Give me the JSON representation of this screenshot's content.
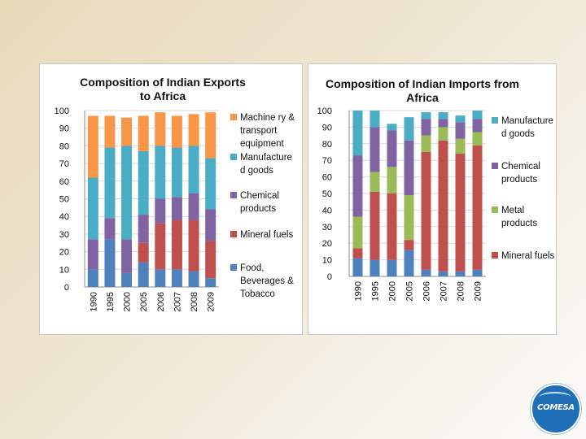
{
  "chart_data": [
    {
      "type": "bar",
      "stacked": true,
      "title": [
        "Composition of Indian Exports",
        "to Africa"
      ],
      "categories": [
        "1990",
        "1995",
        "2000",
        "2005",
        "2006",
        "2007",
        "2008",
        "2009"
      ],
      "ylim": [
        0,
        100
      ],
      "yticks": [
        "0",
        "10",
        "20",
        "30",
        "40",
        "50",
        "60",
        "70",
        "80",
        "90",
        "100"
      ],
      "grid": true,
      "legend_position": "right",
      "series": [
        {
          "name": [
            "Food,",
            "Beverages &",
            "Tobacco"
          ],
          "color": "#4f81bd",
          "values": [
            10,
            27,
            8,
            14,
            10,
            10,
            9,
            5
          ]
        },
        {
          "name": [
            "Mineral fuels"
          ],
          "color": "#c0504d",
          "values": [
            0,
            0,
            0,
            11,
            26,
            28,
            29,
            21
          ]
        },
        {
          "name": [
            "Chemical",
            "products"
          ],
          "color": "#8064a2",
          "values": [
            17,
            12,
            19,
            16,
            14,
            13,
            15,
            18
          ]
        },
        {
          "name": [
            "Manufacture",
            "d goods"
          ],
          "color": "#4bacc6",
          "values": [
            35,
            40,
            53,
            36,
            30,
            28,
            27,
            29
          ]
        },
        {
          "name": [
            "Machine ry &",
            "transport",
            "equipment"
          ],
          "color": "#f79646",
          "values": [
            35,
            18,
            16,
            20,
            19,
            18,
            18,
            26
          ]
        }
      ]
    },
    {
      "type": "bar",
      "stacked": true,
      "title": [
        "Composition of Indian Imports from",
        "Africa"
      ],
      "categories": [
        "1990",
        "1995",
        "2000",
        "2005",
        "2006",
        "2007",
        "2008",
        "2009"
      ],
      "ylim": [
        0,
        100
      ],
      "yticks": [
        "0",
        "10",
        "20",
        "30",
        "40",
        "50",
        "60",
        "70",
        "80",
        "90",
        "100"
      ],
      "grid": true,
      "legend_position": "right",
      "series": [
        {
          "name": [],
          "color": "#4f81bd",
          "values": [
            11,
            10,
            10,
            16,
            4,
            3,
            3,
            4
          ]
        },
        {
          "name": [
            "Mineral fuels"
          ],
          "color": "#c0504d",
          "values": [
            6,
            41,
            40,
            6,
            71,
            79,
            71,
            75
          ]
        },
        {
          "name": [
            "Metal",
            "products"
          ],
          "color": "#9bbb59",
          "values": [
            19,
            12,
            16,
            27,
            10,
            8,
            9,
            8
          ]
        },
        {
          "name": [
            "Chemical",
            "products"
          ],
          "color": "#8064a2",
          "values": [
            37,
            27,
            22,
            33,
            10,
            5,
            10,
            8
          ]
        },
        {
          "name": [
            "Manufacture",
            "d goods"
          ],
          "color": "#4bacc6",
          "values": [
            27,
            10,
            4,
            14,
            4,
            4,
            4,
            5
          ]
        }
      ]
    }
  ],
  "logo": {
    "text": "COMESA"
  }
}
